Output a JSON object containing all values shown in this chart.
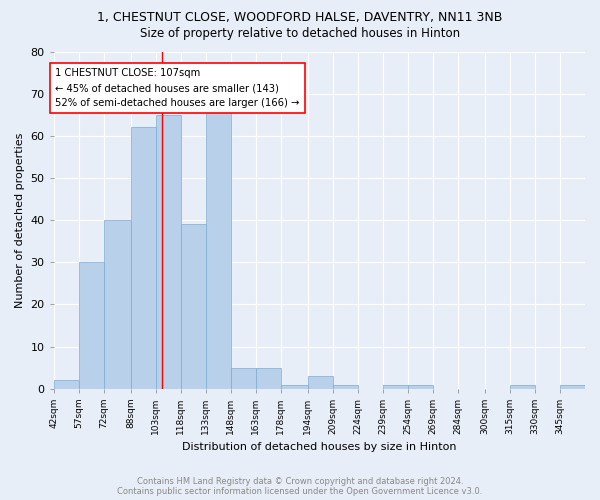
{
  "title": "1, CHESTNUT CLOSE, WOODFORD HALSE, DAVENTRY, NN11 3NB",
  "subtitle": "Size of property relative to detached houses in Hinton",
  "xlabel": "Distribution of detached houses by size in Hinton",
  "ylabel": "Number of detached properties",
  "footer_line1": "Contains HM Land Registry data © Crown copyright and database right 2024.",
  "footer_line2": "Contains public sector information licensed under the Open Government Licence v3.0.",
  "bar_labels": [
    "42sqm",
    "57sqm",
    "72sqm",
    "88sqm",
    "103sqm",
    "118sqm",
    "133sqm",
    "148sqm",
    "163sqm",
    "178sqm",
    "194sqm",
    "209sqm",
    "224sqm",
    "239sqm",
    "254sqm",
    "269sqm",
    "284sqm",
    "300sqm",
    "315sqm",
    "330sqm",
    "345sqm"
  ],
  "bar_values": [
    2,
    30,
    40,
    62,
    65,
    39,
    66,
    5,
    5,
    1,
    3,
    1,
    0,
    1,
    1,
    0,
    0,
    0,
    1,
    0,
    1
  ],
  "bar_color": "#b8d0ea",
  "bar_edge_color": "#7aadd4",
  "annotation_line_color": "red",
  "annotation_text_line1": "1 CHESTNUT CLOSE: 107sqm",
  "annotation_text_line2": "← 45% of detached houses are smaller (143)",
  "annotation_text_line3": "52% of semi-detached houses are larger (166) →",
  "ylim": [
    0,
    80
  ],
  "yticks": [
    0,
    10,
    20,
    30,
    40,
    50,
    60,
    70,
    80
  ],
  "background_color": "#e8eef8",
  "grid_color": "#ffffff",
  "property_sqm": 107,
  "bin_edges": [
    42,
    57,
    72,
    88,
    103,
    118,
    133,
    148,
    163,
    178,
    194,
    209,
    224,
    239,
    254,
    269,
    284,
    300,
    315,
    330,
    345,
    360
  ]
}
